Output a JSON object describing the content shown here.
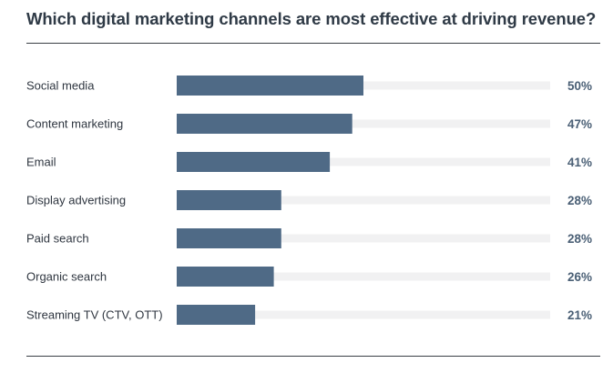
{
  "chart": {
    "title": "Which digital marketing channels are most effective at driving revenue?"
  },
  "chart_data": {
    "type": "bar",
    "orientation": "horizontal",
    "title": "Which digital marketing channels are most effective at driving revenue?",
    "categories": [
      "Social media",
      "Content marketing",
      "Email",
      "Display advertising",
      "Paid search",
      "Organic search",
      "Streaming TV (CTV, OTT)"
    ],
    "values": [
      50,
      47,
      41,
      28,
      28,
      26,
      21
    ],
    "value_labels": [
      "50%",
      "47%",
      "41%",
      "28%",
      "28%",
      "26%",
      "21%"
    ],
    "xlim": [
      0,
      100
    ],
    "unit": "%",
    "grid": false,
    "legend": "none",
    "colors": {
      "bar": "#4f6a86",
      "track": "#f1f1f2",
      "value_text": "#4a5f75",
      "rule": "#3a3f45"
    }
  }
}
